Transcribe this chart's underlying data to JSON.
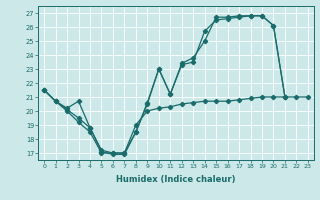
{
  "xlabel": "Humidex (Indice chaleur)",
  "bg_color": "#cce8e8",
  "grid_color": "#b8d8d8",
  "line_color": "#1a6b6b",
  "xlim": [
    -0.5,
    23.5
  ],
  "ylim": [
    16.5,
    27.5
  ],
  "yticks": [
    17,
    18,
    19,
    20,
    21,
    22,
    23,
    24,
    25,
    26,
    27
  ],
  "xticks": [
    0,
    1,
    2,
    3,
    4,
    5,
    6,
    7,
    8,
    9,
    10,
    11,
    12,
    13,
    14,
    15,
    16,
    17,
    18,
    19,
    20,
    21,
    22,
    23
  ],
  "series1_x": [
    0,
    1,
    2,
    3,
    4,
    5,
    6,
    7,
    8,
    9,
    10,
    11,
    12,
    13,
    14,
    15,
    16,
    17,
    18,
    19,
    20,
    21
  ],
  "series1_y": [
    21.5,
    20.7,
    20.2,
    20.7,
    18.8,
    17.1,
    16.9,
    16.9,
    18.5,
    20.6,
    23.0,
    21.2,
    23.4,
    23.8,
    25.0,
    26.7,
    26.7,
    26.8,
    26.8,
    26.8,
    26.1,
    21.0
  ],
  "series2_x": [
    0,
    1,
    2,
    3,
    4,
    5,
    6,
    7,
    8,
    9,
    10,
    11,
    12,
    13,
    14,
    15,
    16,
    17,
    18,
    19,
    20,
    21
  ],
  "series2_y": [
    21.5,
    20.7,
    20.0,
    19.2,
    18.5,
    17.0,
    17.0,
    17.0,
    18.5,
    20.5,
    23.0,
    21.2,
    23.3,
    23.5,
    25.7,
    26.5,
    26.6,
    26.7,
    26.8,
    26.8,
    26.1,
    21.0
  ],
  "series3_x": [
    0,
    1,
    2,
    3,
    4,
    5,
    6,
    7,
    8,
    9,
    10,
    11,
    12,
    13,
    14,
    15,
    16,
    17,
    18,
    19,
    20,
    21,
    22,
    23
  ],
  "series3_y": [
    21.5,
    20.7,
    20.1,
    19.5,
    18.8,
    17.2,
    17.0,
    17.0,
    19.0,
    20.0,
    20.2,
    20.3,
    20.5,
    20.6,
    20.7,
    20.7,
    20.7,
    20.8,
    20.9,
    21.0,
    21.0,
    21.0,
    21.0,
    21.0
  ]
}
